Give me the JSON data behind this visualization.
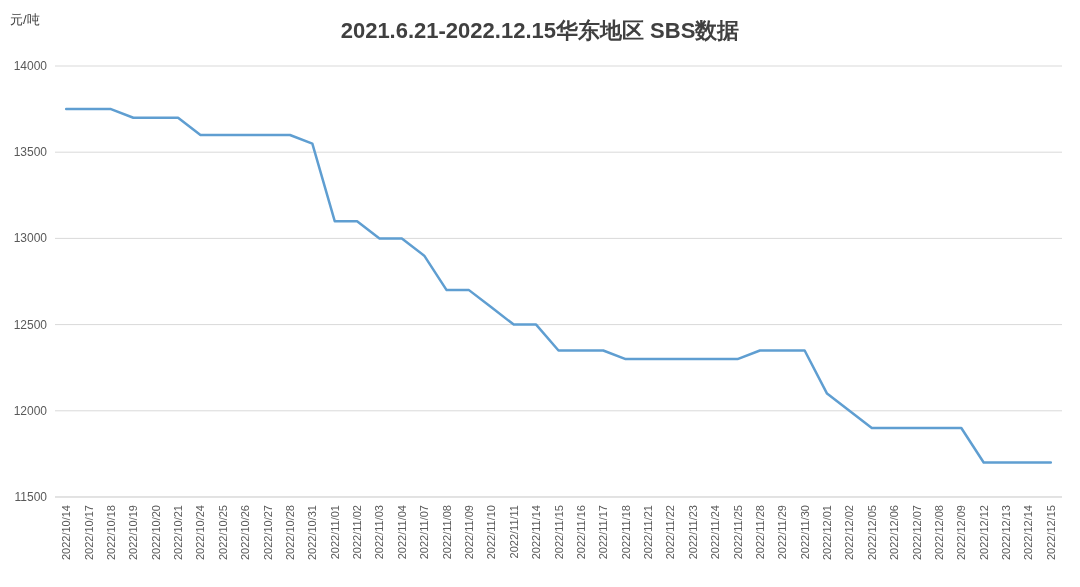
{
  "chart_data": {
    "type": "line",
    "title": "2021.6.21-2022.12.15华东地区  SBS数据",
    "ylabel": "元/吨",
    "categories": [
      "2022/10/14",
      "2022/10/17",
      "2022/10/18",
      "2022/10/19",
      "2022/10/20",
      "2022/10/21",
      "2022/10/24",
      "2022/10/25",
      "2022/10/26",
      "2022/10/27",
      "2022/10/28",
      "2022/10/31",
      "2022/11/01",
      "2022/11/02",
      "2022/11/03",
      "2022/11/04",
      "2022/11/07",
      "2022/11/08",
      "2022/11/09",
      "2022/11/10",
      "2022/11/11",
      "2022/11/14",
      "2022/11/15",
      "2022/11/16",
      "2022/11/17",
      "2022/11/18",
      "2022/11/21",
      "2022/11/22",
      "2022/11/23",
      "2022/11/24",
      "2022/11/25",
      "2022/11/28",
      "2022/11/29",
      "2022/11/30",
      "2022/12/01",
      "2022/12/02",
      "2022/12/05",
      "2022/12/06",
      "2022/12/07",
      "2022/12/08",
      "2022/12/09",
      "2022/12/12",
      "2022/12/13",
      "2022/12/14",
      "2022/12/15"
    ],
    "series": [
      {
        "color": "#5f9ed1",
        "values": [
          13750,
          13750,
          13750,
          13700,
          13700,
          13700,
          13600,
          13600,
          13600,
          13600,
          13600,
          13550,
          13100,
          13100,
          13000,
          13000,
          12900,
          12700,
          12700,
          12600,
          12500,
          12500,
          12350,
          12350,
          12350,
          12300,
          12300,
          12300,
          12300,
          12300,
          12300,
          12350,
          12350,
          12350,
          12100,
          12000,
          11900,
          11900,
          11900,
          11900,
          11900,
          11700,
          11700,
          11700,
          11700
        ]
      }
    ],
    "ylim": [
      11500,
      14000
    ],
    "yticks": [
      11500,
      12000,
      12500,
      13000,
      13500,
      14000
    ],
    "grid": "y"
  }
}
